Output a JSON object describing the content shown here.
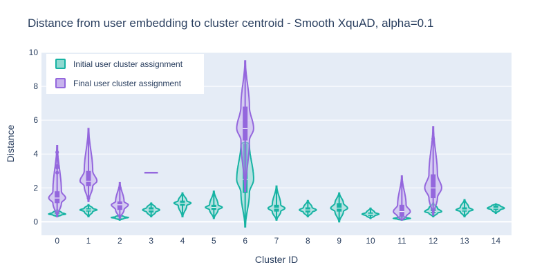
{
  "chart_data": {
    "type": "violin",
    "title": "Distance from user embedding to cluster centroid - Smooth XquAD, alpha=0.1",
    "xlabel": "Cluster ID",
    "ylabel": "Distance",
    "categories": [
      "0",
      "1",
      "2",
      "3",
      "4",
      "5",
      "6",
      "7",
      "8",
      "9",
      "10",
      "11",
      "12",
      "13",
      "14"
    ],
    "ylim": [
      -0.8,
      10
    ],
    "yticks": [
      0,
      2,
      4,
      6,
      8,
      10
    ],
    "grid": true,
    "legend_position": "top-left",
    "series": [
      {
        "name": "Initial user cluster assignment",
        "color": "#17b3a3",
        "fill": "#8fd9d1",
        "stats": [
          {
            "min": 0.3,
            "q1": 0.4,
            "median": 0.45,
            "q3": 0.55,
            "max": 0.7
          },
          {
            "min": 0.3,
            "q1": 0.6,
            "median": 0.7,
            "q3": 0.8,
            "max": 1.0
          },
          {
            "min": 0.1,
            "q1": 0.2,
            "median": 0.25,
            "q3": 0.3,
            "max": 0.4
          },
          {
            "min": 0.3,
            "q1": 0.55,
            "median": 0.7,
            "q3": 0.85,
            "max": 1.1
          },
          {
            "min": 0.3,
            "q1": 0.95,
            "median": 1.1,
            "q3": 1.25,
            "max": 1.7
          },
          {
            "min": 0.2,
            "q1": 0.7,
            "median": 0.85,
            "q3": 1.0,
            "max": 1.8
          },
          {
            "min": -0.3,
            "q1": 1.7,
            "median": 2.5,
            "q3": 4.6,
            "max": 4.7
          },
          {
            "min": 0.1,
            "q1": 0.6,
            "median": 0.8,
            "q3": 1.0,
            "max": 2.1
          },
          {
            "min": 0.3,
            "q1": 0.55,
            "median": 0.7,
            "q3": 0.85,
            "max": 1.25
          },
          {
            "min": 0.0,
            "q1": 0.6,
            "median": 0.8,
            "q3": 1.1,
            "max": 1.7
          },
          {
            "min": 0.2,
            "q1": 0.35,
            "median": 0.45,
            "q3": 0.55,
            "max": 0.8
          },
          {
            "min": 0.1,
            "q1": 0.15,
            "median": 0.2,
            "q3": 0.25,
            "max": 0.35
          },
          {
            "min": 0.3,
            "q1": 0.5,
            "median": 0.6,
            "q3": 0.8,
            "max": 1.1
          },
          {
            "min": 0.3,
            "q1": 0.6,
            "median": 0.7,
            "q3": 0.85,
            "max": 1.3
          },
          {
            "min": 0.5,
            "q1": 0.7,
            "median": 0.8,
            "q3": 0.95,
            "max": 1.05
          }
        ]
      },
      {
        "name": "Final user cluster assignment",
        "color": "#9467dd",
        "fill": "#c7b3ed",
        "stats": [
          {
            "min": 0.3,
            "q1": 1.1,
            "median": 1.4,
            "q3": 1.8,
            "max": 4.5,
            "outliers": [
              2.9,
              3.2,
              3.3,
              4.1
            ]
          },
          {
            "min": 1.2,
            "q1": 2.1,
            "median": 2.4,
            "q3": 3.0,
            "max": 5.5,
            "outliers": [
              1.4
            ]
          },
          {
            "min": 0.2,
            "q1": 0.7,
            "median": 1.0,
            "q3": 1.2,
            "max": 2.3,
            "outliers": [
              2.0
            ]
          },
          {
            "min": 2.9,
            "q1": 2.9,
            "median": 2.9,
            "q3": 2.9,
            "max": 2.9
          },
          null,
          null,
          {
            "min": 1.8,
            "q1": 4.8,
            "median": 5.5,
            "q3": 6.8,
            "max": 9.5
          },
          null,
          null,
          null,
          null,
          {
            "min": 0.1,
            "q1": 0.3,
            "median": 0.6,
            "q3": 1.0,
            "max": 2.7
          },
          {
            "min": 0.4,
            "q1": 1.4,
            "median": 2.0,
            "q3": 2.8,
            "max": 5.6,
            "outliers": [
              4.9
            ]
          },
          null,
          null
        ]
      }
    ]
  }
}
